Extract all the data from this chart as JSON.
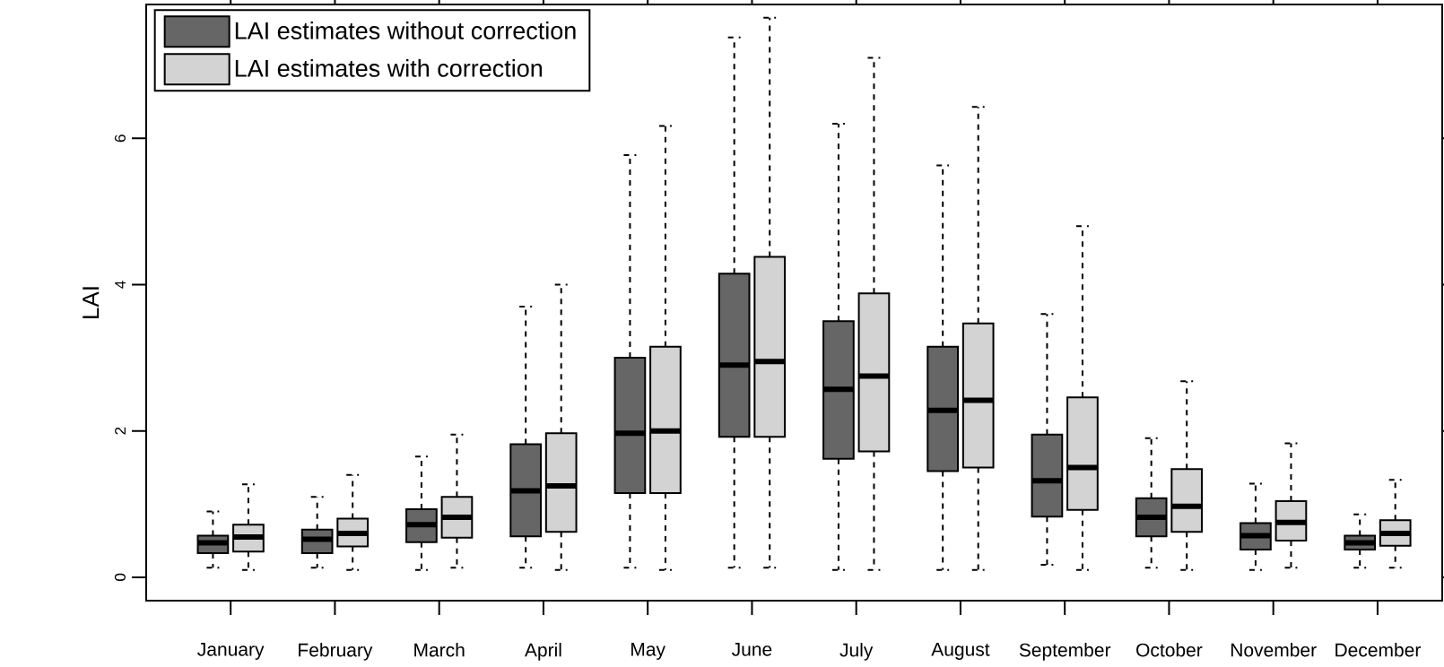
{
  "chart_data": {
    "type": "box",
    "ylabel": "LAI",
    "categories": [
      "January",
      "February",
      "March",
      "April",
      "May",
      "June",
      "July",
      "August",
      "September",
      "October",
      "November",
      "December"
    ],
    "ylim": [
      -0.32,
      7.83
    ],
    "yticks": [
      0,
      2,
      4,
      6
    ],
    "legend": "top left",
    "series": [
      {
        "name": "LAI estimates without correction",
        "color": "#666666",
        "boxes": [
          {
            "low": 0.13,
            "q1": 0.33,
            "median": 0.47,
            "q3": 0.57,
            "high": 0.9
          },
          {
            "low": 0.13,
            "q1": 0.33,
            "median": 0.52,
            "q3": 0.65,
            "high": 1.1
          },
          {
            "low": 0.1,
            "q1": 0.48,
            "median": 0.72,
            "q3": 0.93,
            "high": 1.65
          },
          {
            "low": 0.13,
            "q1": 0.56,
            "median": 1.18,
            "q3": 1.82,
            "high": 3.7
          },
          {
            "low": 0.13,
            "q1": 1.15,
            "median": 1.97,
            "q3": 3.0,
            "high": 5.77
          },
          {
            "low": 0.13,
            "q1": 1.92,
            "median": 2.9,
            "q3": 4.15,
            "high": 7.38
          },
          {
            "low": 0.1,
            "q1": 1.62,
            "median": 2.57,
            "q3": 3.5,
            "high": 6.2
          },
          {
            "low": 0.1,
            "q1": 1.45,
            "median": 2.28,
            "q3": 3.15,
            "high": 5.63
          },
          {
            "low": 0.17,
            "q1": 0.83,
            "median": 1.32,
            "q3": 1.95,
            "high": 3.6
          },
          {
            "low": 0.13,
            "q1": 0.56,
            "median": 0.82,
            "q3": 1.08,
            "high": 1.9
          },
          {
            "low": 0.1,
            "q1": 0.38,
            "median": 0.57,
            "q3": 0.74,
            "high": 1.28
          },
          {
            "low": 0.13,
            "q1": 0.38,
            "median": 0.47,
            "q3": 0.57,
            "high": 0.86
          }
        ]
      },
      {
        "name": "LAI estimates with correction",
        "color": "#d3d3d3",
        "boxes": [
          {
            "low": 0.1,
            "q1": 0.35,
            "median": 0.55,
            "q3": 0.72,
            "high": 1.27
          },
          {
            "low": 0.1,
            "q1": 0.42,
            "median": 0.6,
            "q3": 0.8,
            "high": 1.4
          },
          {
            "low": 0.13,
            "q1": 0.54,
            "median": 0.82,
            "q3": 1.1,
            "high": 1.95
          },
          {
            "low": 0.1,
            "q1": 0.62,
            "median": 1.25,
            "q3": 1.97,
            "high": 4.0
          },
          {
            "low": 0.1,
            "q1": 1.15,
            "median": 2.0,
            "q3": 3.15,
            "high": 6.17
          },
          {
            "low": 0.13,
            "q1": 1.92,
            "median": 2.95,
            "q3": 4.38,
            "high": 7.65
          },
          {
            "low": 0.1,
            "q1": 1.72,
            "median": 2.75,
            "q3": 3.88,
            "high": 7.1
          },
          {
            "low": 0.1,
            "q1": 1.5,
            "median": 2.42,
            "q3": 3.47,
            "high": 6.43
          },
          {
            "low": 0.1,
            "q1": 0.92,
            "median": 1.5,
            "q3": 2.46,
            "high": 4.8
          },
          {
            "low": 0.1,
            "q1": 0.62,
            "median": 0.97,
            "q3": 1.48,
            "high": 2.68
          },
          {
            "low": 0.13,
            "q1": 0.5,
            "median": 0.75,
            "q3": 1.04,
            "high": 1.83
          },
          {
            "low": 0.13,
            "q1": 0.43,
            "median": 0.6,
            "q3": 0.78,
            "high": 1.33
          }
        ]
      }
    ]
  }
}
